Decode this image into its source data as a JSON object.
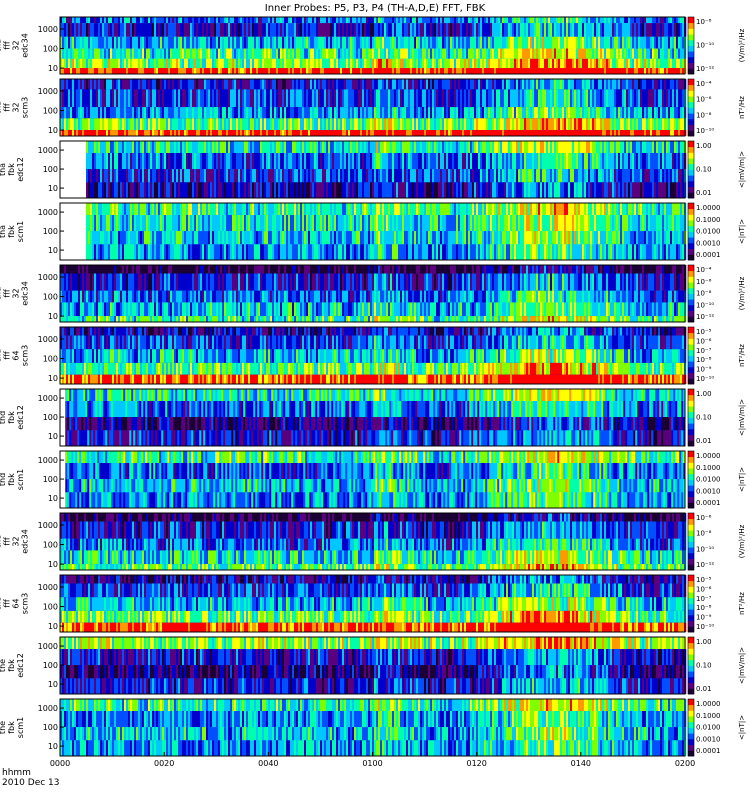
{
  "chart_data": {
    "type": "heatmap",
    "title": "Inner Probes: P5, P3, P4 (TH-A,D,E) FFT, FBK",
    "xlabel": "hhmm",
    "date_label": "2010 Dec 13",
    "x_ticks": [
      "0000",
      "0020",
      "0040",
      "0100",
      "0120",
      "0140",
      "0200"
    ],
    "xlim_minutes": [
      0,
      120
    ],
    "colormap": [
      "#1a0033",
      "#5a007f",
      "#0000cc",
      "#0050ff",
      "#00c8ff",
      "#00ffaa",
      "#7fff00",
      "#ffff00",
      "#ff9900",
      "#ff0000"
    ],
    "panels": [
      {
        "ylabel": [
          "tha",
          "fff",
          "32",
          "edc34"
        ],
        "y_ticks": [
          "1000",
          "100",
          "10"
        ],
        "y_scale": "log",
        "ylim": [
          5,
          4096
        ],
        "colorbar_labels": [
          "10⁻⁸",
          "10⁻¹⁰",
          "10⁻¹²"
        ],
        "units": "(V/m)²/Hz",
        "background": "#00ffaa",
        "bands": [
          {
            "y": [
              2000,
              4096
            ],
            "level": 0.35
          },
          {
            "y": [
              400,
              2000
            ],
            "level": 0.25
          },
          {
            "y": [
              100,
              400
            ],
            "level": 0.45
          },
          {
            "y": [
              30,
              100
            ],
            "level": 0.55
          },
          {
            "y": [
              10,
              30
            ],
            "level": 0.65
          },
          {
            "y": [
              5,
              10
            ],
            "level": 0.95
          }
        ]
      },
      {
        "ylabel": [
          "tha",
          "fff",
          "32",
          "scm3"
        ],
        "y_ticks": [
          "1000",
          "100",
          "10"
        ],
        "y_scale": "log",
        "ylim": [
          5,
          4096
        ],
        "colorbar_labels": [
          "10⁻⁴",
          "10⁻⁶",
          "10⁻⁸",
          "10⁻¹⁰"
        ],
        "units": "nT²/Hz",
        "background": "#0000cc",
        "bands": [
          {
            "y": [
              1200,
              4096
            ],
            "level": 0.25
          },
          {
            "y": [
              150,
              1200
            ],
            "level": 0.3
          },
          {
            "y": [
              40,
              150
            ],
            "level": 0.4
          },
          {
            "y": [
              10,
              40
            ],
            "level": 0.6
          },
          {
            "y": [
              5,
              10
            ],
            "level": 0.95
          }
        ]
      },
      {
        "ylabel": [
          "tha",
          "fbk",
          "edc12"
        ],
        "y_ticks": [
          "1000",
          "100",
          "10"
        ],
        "y_scale": "log",
        "ylim": [
          3,
          3000
        ],
        "colorbar_labels": [
          "1.00",
          "0.10",
          "0.01"
        ],
        "units": "<|mV/m|>",
        "background": "#0050ff",
        "start_minute": 5,
        "bands": [
          {
            "y": [
              700,
              3000
            ],
            "level": 0.5
          },
          {
            "y": [
              100,
              700
            ],
            "level": 0.35
          },
          {
            "y": [
              20,
              100
            ],
            "level": 0.3
          },
          {
            "y": [
              3,
              20
            ],
            "level": 0.2
          }
        ]
      },
      {
        "ylabel": [
          "tha",
          "fbk",
          "scm1"
        ],
        "y_ticks": [
          "1000",
          "100",
          "10"
        ],
        "y_scale": "log",
        "ylim": [
          3,
          3000
        ],
        "colorbar_labels": [
          "1.0000",
          "0.1000",
          "0.0100",
          "0.0010",
          "0.0001"
        ],
        "units": "<|nT|>",
        "background": "#00c8ff",
        "start_minute": 5,
        "bands": [
          {
            "y": [
              700,
              3000
            ],
            "level": 0.55
          },
          {
            "y": [
              100,
              700
            ],
            "level": 0.5
          },
          {
            "y": [
              20,
              100
            ],
            "level": 0.45
          },
          {
            "y": [
              3,
              20
            ],
            "level": 0.4
          }
        ]
      },
      {
        "ylabel": [
          "thd",
          "fff",
          "32",
          "edc34"
        ],
        "y_ticks": [
          "1000",
          "100",
          "10"
        ],
        "y_scale": "log",
        "ylim": [
          5,
          4096
        ],
        "colorbar_labels": [
          "10⁻⁴",
          "10⁻⁶",
          "10⁻⁸",
          "10⁻¹⁰",
          "10⁻¹²"
        ],
        "units": "(V/m)²/Hz",
        "background": "#0050ff",
        "bands": [
          {
            "y": [
              1500,
              4096
            ],
            "level": 0.05
          },
          {
            "y": [
              200,
              1500
            ],
            "level": 0.25
          },
          {
            "y": [
              50,
              200
            ],
            "level": 0.35
          },
          {
            "y": [
              10,
              50
            ],
            "level": 0.45
          },
          {
            "y": [
              5,
              10
            ],
            "level": 0.55
          }
        ]
      },
      {
        "ylabel": [
          "thd",
          "fff",
          "64",
          "scm3"
        ],
        "y_ticks": [
          "1000",
          "100",
          "10"
        ],
        "y_scale": "log",
        "ylim": [
          5,
          4096
        ],
        "colorbar_labels": [
          "10⁻⁵",
          "10⁻⁶",
          "10⁻⁷",
          "10⁻⁸",
          "10⁻⁹",
          "10⁻¹⁰"
        ],
        "units": "nT²/Hz",
        "background": "#0000cc",
        "bands": [
          {
            "y": [
              1500,
              4096
            ],
            "level": 0.2
          },
          {
            "y": [
              300,
              1500
            ],
            "level": 0.3
          },
          {
            "y": [
              60,
              300
            ],
            "level": 0.45
          },
          {
            "y": [
              15,
              60
            ],
            "level": 0.6
          },
          {
            "y": [
              5,
              15
            ],
            "level": 0.9
          }
        ]
      },
      {
        "ylabel": [
          "thd",
          "fbk",
          "edc12"
        ],
        "y_ticks": [
          "1000",
          "100",
          "10"
        ],
        "y_scale": "log",
        "ylim": [
          3,
          3000
        ],
        "colorbar_labels": [
          "1.00",
          "0.10",
          "0.01"
        ],
        "units": "<|mV/m|>",
        "background": "#0050ff",
        "start_minute": 1,
        "bands": [
          {
            "y": [
              700,
              3000
            ],
            "level": 0.5
          },
          {
            "y": [
              100,
              700
            ],
            "level": 0.35
          },
          {
            "y": [
              20,
              100
            ],
            "level": 0.15
          },
          {
            "y": [
              3,
              20
            ],
            "level": 0.25
          }
        ]
      },
      {
        "ylabel": [
          "thd",
          "fbk",
          "scm1"
        ],
        "y_ticks": [
          "1000",
          "100",
          "10"
        ],
        "y_scale": "log",
        "ylim": [
          3,
          3000
        ],
        "colorbar_labels": [
          "1.0000",
          "0.1000",
          "0.0100",
          "0.0010",
          "0.0001"
        ],
        "units": "<|nT|>",
        "background": "#00c8ff",
        "start_minute": 1,
        "bands": [
          {
            "y": [
              700,
              3000
            ],
            "level": 0.55
          },
          {
            "y": [
              100,
              700
            ],
            "level": 0.35
          },
          {
            "y": [
              20,
              100
            ],
            "level": 0.45
          },
          {
            "y": [
              3,
              20
            ],
            "level": 0.4
          }
        ]
      },
      {
        "ylabel": [
          "the",
          "fff",
          "32",
          "edc34"
        ],
        "y_ticks": [
          "1000",
          "100",
          "10"
        ],
        "y_scale": "log",
        "ylim": [
          5,
          4096
        ],
        "colorbar_labels": [
          "10⁻⁶",
          "10⁻⁸",
          "10⁻¹⁰",
          "10⁻¹²"
        ],
        "units": "(V/m)²/Hz",
        "background": "#0050ff",
        "bands": [
          {
            "y": [
              1500,
              4096
            ],
            "level": 0.05
          },
          {
            "y": [
              200,
              1500
            ],
            "level": 0.25
          },
          {
            "y": [
              50,
              200
            ],
            "level": 0.35
          },
          {
            "y": [
              10,
              50
            ],
            "level": 0.5
          },
          {
            "y": [
              5,
              10
            ],
            "level": 0.6
          }
        ]
      },
      {
        "ylabel": [
          "the",
          "fff",
          "64",
          "scm3"
        ],
        "y_ticks": [
          "1000",
          "100",
          "10"
        ],
        "y_scale": "log",
        "ylim": [
          5,
          4096
        ],
        "colorbar_labels": [
          "10⁻⁵",
          "10⁻⁶",
          "10⁻⁷",
          "10⁻⁸",
          "10⁻⁹",
          "10⁻¹⁰"
        ],
        "units": "nT²/Hz",
        "background": "#0000cc",
        "bands": [
          {
            "y": [
              1500,
              4096
            ],
            "level": 0.2
          },
          {
            "y": [
              300,
              1500
            ],
            "level": 0.3
          },
          {
            "y": [
              60,
              300
            ],
            "level": 0.45
          },
          {
            "y": [
              15,
              60
            ],
            "level": 0.6
          },
          {
            "y": [
              5,
              15
            ],
            "level": 0.9
          }
        ]
      },
      {
        "ylabel": [
          "the",
          "fbk",
          "edc12"
        ],
        "y_ticks": [
          "1000",
          "100",
          "10"
        ],
        "y_scale": "log",
        "ylim": [
          3,
          3000
        ],
        "colorbar_labels": [
          "1.00",
          "0.10",
          "0.01"
        ],
        "units": "<|mV/m|>",
        "background": "#0050ff",
        "bands": [
          {
            "y": [
              700,
              3000
            ],
            "level": 0.65
          },
          {
            "y": [
              100,
              700
            ],
            "level": 0.25
          },
          {
            "y": [
              20,
              100
            ],
            "level": 0.15
          },
          {
            "y": [
              3,
              20
            ],
            "level": 0.25
          }
        ]
      },
      {
        "ylabel": [
          "the",
          "fbk",
          "scm1"
        ],
        "y_ticks": [
          "1000",
          "100",
          "10"
        ],
        "y_scale": "log",
        "ylim": [
          3,
          3000
        ],
        "colorbar_labels": [
          "1.0000",
          "0.1000",
          "0.0100",
          "0.0010",
          "0.0001"
        ],
        "units": "<|nT|>",
        "background": "#00c8ff",
        "bands": [
          {
            "y": [
              700,
              3000
            ],
            "level": 0.55
          },
          {
            "y": [
              100,
              700
            ],
            "level": 0.4
          },
          {
            "y": [
              20,
              100
            ],
            "level": 0.45
          },
          {
            "y": [
              3,
              20
            ],
            "level": 0.4
          }
        ]
      }
    ]
  }
}
